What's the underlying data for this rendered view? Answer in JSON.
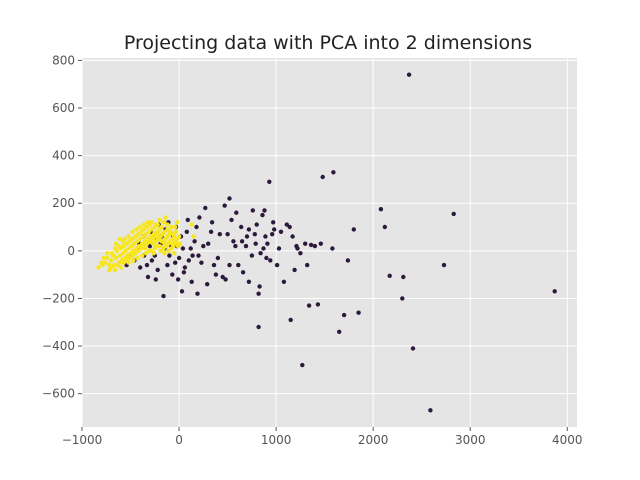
{
  "chart_data": {
    "type": "scatter",
    "title": "Projecting data with PCA into 2 dimensions",
    "xlabel": "",
    "ylabel": "",
    "xlim": [
      -1000,
      4100
    ],
    "ylim": [
      -740,
      810
    ],
    "xticks": [
      -1000,
      0,
      1000,
      2000,
      3000,
      4000
    ],
    "yticks": [
      -600,
      -400,
      -200,
      0,
      200,
      400,
      600,
      800
    ],
    "xtick_labels": [
      "−1000",
      "0",
      "1000",
      "2000",
      "3000",
      "4000"
    ],
    "ytick_labels": [
      "−600",
      "−400",
      "−200",
      "0",
      "200",
      "400",
      "600",
      "800"
    ],
    "grid": true,
    "background_color": "#e5e5e5",
    "grid_color": "#ffffff",
    "series": [
      {
        "color": "#2d1a3b",
        "points": [
          [
            2370,
            740
          ],
          [
            1590,
            330
          ],
          [
            1480,
            310
          ],
          [
            930,
            290
          ],
          [
            2080,
            175
          ],
          [
            2830,
            155
          ],
          [
            2120,
            100
          ],
          [
            2730,
            -60
          ],
          [
            2170,
            -105
          ],
          [
            2310,
            -110
          ],
          [
            3870,
            -170
          ],
          [
            2300,
            -200
          ],
          [
            1850,
            -260
          ],
          [
            1700,
            -270
          ],
          [
            1150,
            -290
          ],
          [
            1650,
            -340
          ],
          [
            1430,
            -225
          ],
          [
            1340,
            -230
          ],
          [
            820,
            -320
          ],
          [
            1270,
            -480
          ],
          [
            2410,
            -410
          ],
          [
            2590,
            -670
          ],
          [
            1800,
            90
          ],
          [
            1740,
            -40
          ],
          [
            1580,
            10
          ],
          [
            1460,
            30
          ],
          [
            1400,
            20
          ],
          [
            1360,
            25
          ],
          [
            1300,
            30
          ],
          [
            1320,
            -60
          ],
          [
            1220,
            10
          ],
          [
            1190,
            -80
          ],
          [
            1080,
            -130
          ],
          [
            1010,
            -60
          ],
          [
            900,
            -30
          ],
          [
            830,
            -150
          ],
          [
            820,
            -180
          ],
          [
            960,
            70
          ],
          [
            980,
            90
          ],
          [
            890,
            60
          ],
          [
            860,
            150
          ],
          [
            880,
            170
          ],
          [
            800,
            110
          ],
          [
            780,
            70
          ],
          [
            720,
            90
          ],
          [
            700,
            60
          ],
          [
            640,
            100
          ],
          [
            590,
            160
          ],
          [
            520,
            220
          ],
          [
            470,
            190
          ],
          [
            420,
            70
          ],
          [
            400,
            -30
          ],
          [
            360,
            -60
          ],
          [
            330,
            80
          ],
          [
            300,
            30
          ],
          [
            270,
            180
          ],
          [
            250,
            20
          ],
          [
            230,
            -50
          ],
          [
            200,
            -20
          ],
          [
            180,
            100
          ],
          [
            160,
            40
          ],
          [
            140,
            -20
          ],
          [
            120,
            10
          ],
          [
            100,
            -40
          ],
          [
            80,
            80
          ],
          [
            60,
            -70
          ],
          [
            40,
            10
          ],
          [
            20,
            60
          ],
          [
            0,
            -30
          ],
          [
            -20,
            20
          ],
          [
            -40,
            -50
          ],
          [
            -60,
            60
          ],
          [
            -80,
            20
          ],
          [
            -100,
            -20
          ],
          [
            -120,
            -60
          ],
          [
            -150,
            10
          ],
          [
            -160,
            -190
          ],
          [
            -190,
            30
          ],
          [
            -220,
            -80
          ],
          [
            -250,
            -20
          ],
          [
            -280,
            -40
          ],
          [
            -300,
            20
          ],
          [
            -330,
            -60
          ],
          [
            -360,
            -20
          ],
          [
            -400,
            -70
          ],
          [
            -430,
            10
          ],
          [
            -260,
            50
          ],
          [
            -10,
            -120
          ],
          [
            30,
            -170
          ],
          [
            190,
            -180
          ],
          [
            450,
            -110
          ],
          [
            480,
            -120
          ],
          [
            520,
            -60
          ],
          [
            560,
            40
          ],
          [
            610,
            -60
          ],
          [
            660,
            -90
          ],
          [
            690,
            20
          ],
          [
            750,
            -20
          ],
          [
            760,
            170
          ],
          [
            790,
            30
          ],
          [
            840,
            -10
          ],
          [
            870,
            10
          ],
          [
            910,
            30
          ],
          [
            940,
            -40
          ],
          [
            1050,
            80
          ],
          [
            1110,
            110
          ],
          [
            1140,
            100
          ],
          [
            1170,
            60
          ],
          [
            1210,
            20
          ],
          [
            1250,
            -10
          ],
          [
            1030,
            10
          ],
          [
            970,
            120
          ],
          [
            720,
            -130
          ],
          [
            650,
            40
          ],
          [
            580,
            20
          ],
          [
            540,
            130
          ],
          [
            500,
            70
          ],
          [
            380,
            -100
          ],
          [
            340,
            120
          ],
          [
            290,
            -140
          ],
          [
            210,
            140
          ],
          [
            130,
            -130
          ],
          [
            90,
            130
          ],
          [
            50,
            -90
          ],
          [
            -30,
            100
          ],
          [
            -70,
            -100
          ],
          [
            -110,
            120
          ],
          [
            -140,
            90
          ],
          [
            -180,
            60
          ],
          [
            -210,
            110
          ],
          [
            -240,
            -120
          ],
          [
            -290,
            80
          ],
          [
            -320,
            -110
          ],
          [
            -370,
            60
          ],
          [
            -410,
            30
          ],
          [
            -460,
            -40
          ],
          [
            -500,
            -20
          ],
          [
            -540,
            -60
          ]
        ]
      },
      {
        "color": "#f7e61e",
        "points": [
          [
            -830,
            -70
          ],
          [
            -790,
            -60
          ],
          [
            -760,
            -50
          ],
          [
            -740,
            -30
          ],
          [
            -720,
            -80
          ],
          [
            -700,
            -40
          ],
          [
            -690,
            -10
          ],
          [
            -670,
            -60
          ],
          [
            -650,
            -30
          ],
          [
            -640,
            0
          ],
          [
            -620,
            -50
          ],
          [
            -610,
            -20
          ],
          [
            -600,
            10
          ],
          [
            -590,
            -40
          ],
          [
            -580,
            -10
          ],
          [
            -570,
            20
          ],
          [
            -560,
            -30
          ],
          [
            -550,
            0
          ],
          [
            -540,
            30
          ],
          [
            -530,
            -20
          ],
          [
            -520,
            10
          ],
          [
            -510,
            40
          ],
          [
            -500,
            -10
          ],
          [
            -490,
            20
          ],
          [
            -480,
            50
          ],
          [
            -470,
            0
          ],
          [
            -460,
            30
          ],
          [
            -450,
            60
          ],
          [
            -440,
            10
          ],
          [
            -430,
            40
          ],
          [
            -420,
            70
          ],
          [
            -410,
            20
          ],
          [
            -400,
            50
          ],
          [
            -390,
            80
          ],
          [
            -380,
            30
          ],
          [
            -370,
            60
          ],
          [
            -360,
            90
          ],
          [
            -350,
            40
          ],
          [
            -340,
            70
          ],
          [
            -330,
            100
          ],
          [
            -320,
            50
          ],
          [
            -310,
            80
          ],
          [
            -300,
            110
          ],
          [
            -290,
            60
          ],
          [
            -280,
            90
          ],
          [
            -270,
            30
          ],
          [
            -260,
            70
          ],
          [
            -250,
            100
          ],
          [
            -240,
            40
          ],
          [
            -230,
            80
          ],
          [
            -220,
            110
          ],
          [
            -210,
            50
          ],
          [
            -200,
            90
          ],
          [
            -190,
            60
          ],
          [
            -180,
            100
          ],
          [
            -170,
            70
          ],
          [
            -160,
            40
          ],
          [
            -150,
            80
          ],
          [
            -140,
            50
          ],
          [
            -130,
            20
          ],
          [
            -120,
            60
          ],
          [
            -110,
            30
          ],
          [
            -100,
            70
          ],
          [
            -90,
            40
          ],
          [
            -80,
            10
          ],
          [
            -70,
            50
          ],
          [
            -60,
            20
          ],
          [
            -50,
            60
          ],
          [
            -40,
            30
          ],
          [
            -30,
            80
          ],
          [
            -20,
            50
          ],
          [
            -10,
            20
          ],
          [
            0,
            60
          ],
          [
            10,
            30
          ],
          [
            -700,
            -70
          ],
          [
            -660,
            -80
          ],
          [
            -630,
            -60
          ],
          [
            -600,
            -70
          ],
          [
            -570,
            -50
          ],
          [
            -540,
            -40
          ],
          [
            -510,
            -30
          ],
          [
            -480,
            -20
          ],
          [
            -450,
            -10
          ],
          [
            -420,
            0
          ],
          [
            -390,
            10
          ],
          [
            -360,
            20
          ],
          [
            -330,
            30
          ],
          [
            -300,
            40
          ],
          [
            -270,
            50
          ],
          [
            -240,
            60
          ],
          [
            -210,
            70
          ],
          [
            -180,
            40
          ],
          [
            -150,
            30
          ],
          [
            -120,
            90
          ],
          [
            -90,
            80
          ],
          [
            -60,
            70
          ],
          [
            -30,
            40
          ],
          [
            -560,
            50
          ],
          [
            -520,
            60
          ],
          [
            -480,
            80
          ],
          [
            -440,
            90
          ],
          [
            -400,
            100
          ],
          [
            -360,
            110
          ],
          [
            -320,
            120
          ],
          [
            -280,
            120
          ],
          [
            -240,
            110
          ],
          [
            -200,
            130
          ],
          [
            -160,
            120
          ],
          [
            -120,
            110
          ],
          [
            -80,
            100
          ],
          [
            -40,
            100
          ],
          [
            -620,
            20
          ],
          [
            -580,
            40
          ],
          [
            -660,
            10
          ],
          [
            -740,
            -10
          ],
          [
            -780,
            -30
          ],
          [
            -800,
            -50
          ],
          [
            -720,
            -60
          ],
          [
            -680,
            -20
          ],
          [
            -650,
            30
          ],
          [
            -610,
            50
          ],
          [
            -520,
            -50
          ],
          [
            -470,
            -40
          ],
          [
            -430,
            -30
          ],
          [
            -380,
            -20
          ],
          [
            -340,
            -10
          ],
          [
            -290,
            0
          ],
          [
            -250,
            10
          ],
          [
            -200,
            20
          ],
          [
            -160,
            10
          ],
          [
            -110,
            0
          ],
          [
            -70,
            30
          ],
          [
            -50,
            -10
          ],
          [
            130,
            110
          ],
          [
            150,
            60
          ],
          [
            -140,
            140
          ],
          [
            -20,
            120
          ],
          [
            -350,
            10
          ],
          [
            -310,
            0
          ],
          [
            -260,
            -10
          ],
          [
            -230,
            20
          ],
          [
            -190,
            0
          ],
          [
            -150,
            -10
          ]
        ]
      }
    ]
  }
}
